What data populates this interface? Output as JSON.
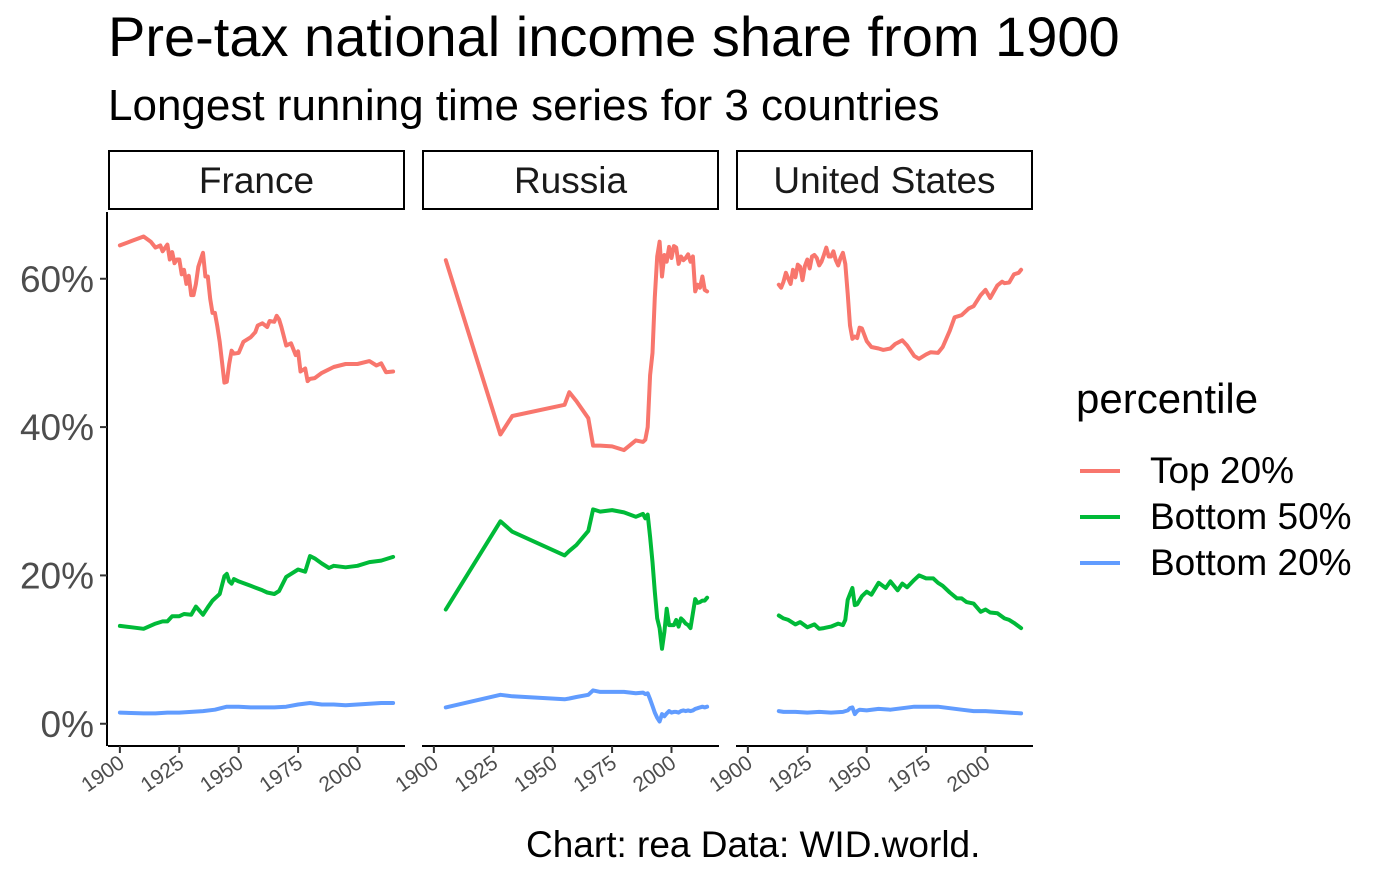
{
  "title": "Pre-tax national income share from 1900",
  "subtitle": "Longest running time series for 3 countries",
  "caption": "Chart: rea Data: WID.world.",
  "legend": {
    "title": "percentile",
    "items": [
      {
        "label": "Top 20%",
        "color": "#F8766D"
      },
      {
        "label": "Bottom 50%",
        "color": "#00BA38"
      },
      {
        "label": "Bottom 20%",
        "color": "#619CFF"
      }
    ]
  },
  "chart_data": {
    "type": "line",
    "facet_layout": "1 row x 3 columns, shared y axis",
    "grid": false,
    "legend_position": "right",
    "xlim": [
      1895,
      2020
    ],
    "ylim": [
      -3,
      69
    ],
    "x_ticks": [
      1900,
      1925,
      1950,
      1975,
      2000
    ],
    "x_tick_labels": [
      "1900",
      "1925",
      "1950",
      "1975",
      "2000"
    ],
    "y_ticks": [
      0,
      20,
      40,
      60
    ],
    "y_tick_labels": [
      "0%",
      "20%",
      "40%",
      "60%"
    ],
    "panels": [
      {
        "facet": "France",
        "series": [
          {
            "name": "Top 20%",
            "color": "#F8766D",
            "x": [
              1900,
              1905,
              1910,
              1913,
              1915,
              1917,
              1918,
              1920,
              1921,
              1922,
              1923,
              1924,
              1925,
              1926,
              1927,
              1928,
              1929,
              1930,
              1931,
              1932,
              1933,
              1934,
              1935,
              1936,
              1937,
              1938,
              1939,
              1940,
              1941,
              1942,
              1943,
              1944,
              1945,
              1946,
              1947,
              1948,
              1950,
              1952,
              1955,
              1957,
              1958,
              1960,
              1962,
              1963,
              1965,
              1966,
              1967,
              1968,
              1970,
              1972,
              1974,
              1975,
              1976,
              1978,
              1979,
              1980,
              1982,
              1985,
              1990,
              1995,
              2000,
              2005,
              2008,
              2010,
              2012,
              2015
            ],
            "y": [
              64.5,
              65.1,
              65.7,
              65.0,
              64.2,
              64.5,
              63.7,
              64.6,
              62.6,
              63.6,
              62.1,
              62.6,
              62.6,
              60.6,
              61.2,
              59.3,
              60.4,
              57.8,
              57.8,
              59.3,
              61.6,
              62.6,
              63.5,
              60.3,
              60.3,
              57.3,
              55.4,
              55.4,
              53.6,
              51.5,
              48.8,
              46.0,
              46.1,
              48.5,
              50.3,
              49.9,
              50.0,
              51.5,
              52.1,
              52.8,
              53.7,
              54.0,
              53.5,
              54.3,
              54.2,
              55.0,
              54.5,
              53.5,
              51.0,
              51.3,
              49.7,
              50.2,
              47.5,
              47.9,
              46.2,
              46.5,
              46.6,
              47.3,
              48.1,
              48.5,
              48.5,
              48.9,
              48.3,
              48.6,
              47.4,
              47.5
            ]
          },
          {
            "name": "Bottom 50%",
            "color": "#00BA38",
            "x": [
              1900,
              1905,
              1910,
              1915,
              1918,
              1920,
              1922,
              1925,
              1927,
              1930,
              1932,
              1935,
              1937,
              1939,
              1940,
              1942,
              1944,
              1945,
              1946,
              1947,
              1948,
              1950,
              1955,
              1960,
              1962,
              1965,
              1967,
              1970,
              1972,
              1975,
              1978,
              1980,
              1982,
              1985,
              1988,
              1990,
              1995,
              2000,
              2005,
              2010,
              2015
            ],
            "y": [
              13.2,
              13.0,
              12.8,
              13.5,
              13.8,
              13.8,
              14.5,
              14.5,
              14.8,
              14.7,
              15.8,
              14.7,
              15.7,
              16.6,
              16.9,
              17.5,
              19.9,
              20.2,
              19.2,
              18.9,
              19.5,
              19.2,
              18.6,
              18.0,
              17.7,
              17.5,
              17.9,
              19.8,
              20.2,
              20.8,
              20.5,
              22.6,
              22.3,
              21.6,
              21.0,
              21.3,
              21.1,
              21.3,
              21.8,
              22.0,
              22.5
            ]
          },
          {
            "name": "Bottom 20%",
            "color": "#619CFF",
            "x": [
              1900,
              1910,
              1915,
              1920,
              1925,
              1930,
              1935,
              1940,
              1945,
              1950,
              1955,
              1960,
              1965,
              1970,
              1975,
              1980,
              1985,
              1990,
              1995,
              2000,
              2005,
              2010,
              2015
            ],
            "y": [
              1.5,
              1.4,
              1.4,
              1.5,
              1.5,
              1.6,
              1.7,
              1.9,
              2.3,
              2.3,
              2.2,
              2.2,
              2.2,
              2.3,
              2.6,
              2.8,
              2.6,
              2.6,
              2.5,
              2.6,
              2.7,
              2.8,
              2.8
            ]
          }
        ]
      },
      {
        "facet": "Russia",
        "series": [
          {
            "name": "Top 20%",
            "color": "#F8766D",
            "x": [
              1905,
              1928,
              1933,
              1955,
              1957,
              1960,
              1965,
              1967,
              1970,
              1975,
              1980,
              1985,
              1988,
              1989,
              1990,
              1991,
              1992,
              1993,
              1994,
              1995,
              1996,
              1997,
              1998,
              1999,
              2000,
              2001,
              2002,
              2003,
              2004,
              2005,
              2006,
              2007,
              2008,
              2009,
              2010,
              2011,
              2012,
              2013,
              2014,
              2015
            ],
            "y": [
              62.5,
              39.0,
              41.5,
              43.0,
              44.7,
              43.5,
              41.2,
              37.5,
              37.5,
              37.4,
              36.9,
              38.2,
              38.0,
              38.3,
              40.0,
              47.0,
              50.0,
              57.5,
              63.0,
              65.0,
              60.3,
              63.2,
              62.3,
              64.3,
              62.8,
              64.4,
              64.2,
              62.0,
              63.0,
              62.5,
              62.8,
              63.3,
              62.3,
              63.0,
              58.3,
              59.2,
              58.8,
              60.3,
              58.5,
              58.3
            ]
          },
          {
            "name": "Bottom 50%",
            "color": "#00BA38",
            "x": [
              1905,
              1928,
              1933,
              1955,
              1957,
              1960,
              1965,
              1967,
              1970,
              1975,
              1980,
              1985,
              1988,
              1989,
              1990,
              1991,
              1992,
              1993,
              1994,
              1995,
              1996,
              1997,
              1998,
              1999,
              2000,
              2001,
              2002,
              2003,
              2004,
              2005,
              2006,
              2007,
              2008,
              2009,
              2010,
              2011,
              2012,
              2013,
              2014,
              2015
            ],
            "y": [
              15.4,
              27.3,
              25.9,
              22.7,
              23.3,
              24.1,
              26.0,
              28.9,
              28.6,
              28.8,
              28.5,
              27.9,
              28.3,
              27.7,
              28.2,
              25.2,
              21.8,
              17.8,
              14.2,
              12.9,
              10.1,
              12.4,
              15.5,
              13.3,
              13.3,
              13.3,
              14.0,
              13.1,
              14.2,
              13.9,
              13.5,
              13.3,
              12.9,
              14.9,
              16.8,
              16.3,
              16.4,
              16.6,
              16.6,
              17.0
            ]
          },
          {
            "name": "Bottom 20%",
            "color": "#619CFF",
            "x": [
              1905,
              1928,
              1933,
              1955,
              1957,
              1960,
              1965,
              1967,
              1970,
              1975,
              1980,
              1985,
              1988,
              1989,
              1990,
              1991,
              1992,
              1993,
              1994,
              1995,
              1996,
              1997,
              1998,
              1999,
              2000,
              2001,
              2002,
              2003,
              2004,
              2005,
              2006,
              2007,
              2008,
              2009,
              2010,
              2011,
              2012,
              2013,
              2014,
              2015
            ],
            "y": [
              2.2,
              3.9,
              3.7,
              3.3,
              3.4,
              3.6,
              3.9,
              4.5,
              4.3,
              4.3,
              4.3,
              4.1,
              4.2,
              4.0,
              4.1,
              3.3,
              2.4,
              1.5,
              0.8,
              0.3,
              1.3,
              1.0,
              1.4,
              1.7,
              1.5,
              1.6,
              1.6,
              1.5,
              1.7,
              1.8,
              1.7,
              1.8,
              1.7,
              1.8,
              2.0,
              2.1,
              2.2,
              2.3,
              2.2,
              2.3
            ]
          }
        ]
      },
      {
        "facet": "United States",
        "series": [
          {
            "name": "Top 20%",
            "color": "#F8766D",
            "x": [
              1913,
              1914,
              1915,
              1916,
              1917,
              1918,
              1919,
              1920,
              1921,
              1922,
              1923,
              1924,
              1925,
              1926,
              1927,
              1928,
              1929,
              1930,
              1931,
              1932,
              1933,
              1934,
              1935,
              1936,
              1937,
              1938,
              1939,
              1940,
              1941,
              1942,
              1943,
              1944,
              1945,
              1946,
              1947,
              1948,
              1950,
              1952,
              1955,
              1957,
              1960,
              1962,
              1965,
              1967,
              1970,
              1972,
              1975,
              1977,
              1980,
              1982,
              1985,
              1987,
              1990,
              1993,
              1995,
              1998,
              2000,
              2002,
              2005,
              2007,
              2008,
              2010,
              2012,
              2014,
              2015
            ],
            "y": [
              59.2,
              58.8,
              59.6,
              60.8,
              60.0,
              59.3,
              61.2,
              60.2,
              61.9,
              61.6,
              59.8,
              61.7,
              62.6,
              61.4,
              63.0,
              63.2,
              62.8,
              61.8,
              62.3,
              63.2,
              64.2,
              63.0,
              63.0,
              63.7,
              62.5,
              61.8,
              62.8,
              63.5,
              62.0,
              58.0,
              53.7,
              51.9,
              52.2,
              52.0,
              53.4,
              53.3,
              51.6,
              50.8,
              50.6,
              50.4,
              50.6,
              51.2,
              51.7,
              51.0,
              49.6,
              49.2,
              49.8,
              50.1,
              50.0,
              50.8,
              53.0,
              54.8,
              55.1,
              56.0,
              56.3,
              57.8,
              58.5,
              57.4,
              59.1,
              59.6,
              59.4,
              59.5,
              60.6,
              60.8,
              61.2
            ]
          },
          {
            "name": "Bottom 50%",
            "color": "#00BA38",
            "x": [
              1913,
              1915,
              1917,
              1920,
              1922,
              1925,
              1928,
              1930,
              1932,
              1935,
              1938,
              1940,
              1941,
              1942,
              1943,
              1944,
              1945,
              1946,
              1948,
              1950,
              1952,
              1955,
              1958,
              1960,
              1963,
              1965,
              1967,
              1970,
              1972,
              1975,
              1978,
              1980,
              1982,
              1985,
              1988,
              1990,
              1992,
              1995,
              1998,
              2000,
              2002,
              2005,
              2008,
              2010,
              2012,
              2015
            ],
            "y": [
              14.6,
              14.2,
              14.0,
              13.4,
              13.7,
              13.0,
              13.4,
              12.8,
              12.9,
              13.1,
              13.5,
              13.3,
              14.0,
              16.7,
              17.5,
              18.3,
              16.0,
              16.1,
              17.2,
              17.8,
              17.4,
              19.0,
              18.3,
              19.2,
              18.0,
              18.9,
              18.4,
              19.4,
              20.0,
              19.6,
              19.6,
              19.0,
              18.6,
              17.7,
              16.9,
              16.9,
              16.4,
              16.2,
              15.1,
              15.4,
              15.0,
              14.9,
              14.2,
              14.0,
              13.6,
              12.9
            ]
          },
          {
            "name": "Bottom 20%",
            "color": "#619CFF",
            "x": [
              1913,
              1915,
              1920,
              1925,
              1930,
              1935,
              1940,
              1942,
              1943,
              1944,
              1945,
              1946,
              1947,
              1950,
              1955,
              1960,
              1965,
              1970,
              1975,
              1980,
              1985,
              1990,
              1995,
              2000,
              2005,
              2010,
              2015
            ],
            "y": [
              1.7,
              1.6,
              1.6,
              1.5,
              1.6,
              1.5,
              1.6,
              1.8,
              2.1,
              2.2,
              1.3,
              1.7,
              1.9,
              1.8,
              2.0,
              1.9,
              2.1,
              2.3,
              2.3,
              2.3,
              2.1,
              1.9,
              1.7,
              1.7,
              1.6,
              1.5,
              1.4
            ]
          }
        ]
      }
    ]
  }
}
